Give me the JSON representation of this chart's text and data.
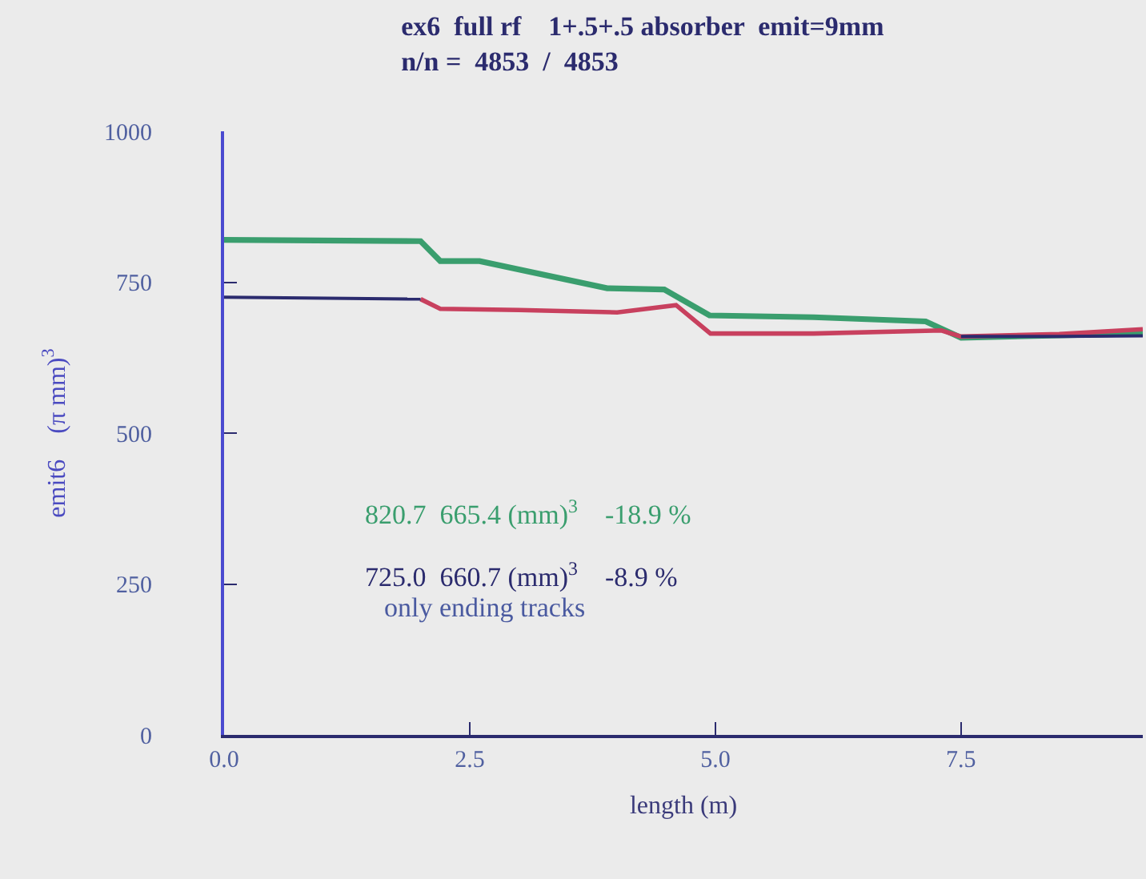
{
  "chart_data": {
    "type": "line",
    "title": "ex6  full rf    1+.5+.5 absorber  emit=9mm",
    "subtitle": "n/n =  4853  /  4853",
    "xlabel": "length (m)",
    "ylabel": "emit6    (π mm)$^{3}$",
    "series": [
      {
        "color": "#3a9e6e",
        "x": [
          0,
          2.0,
          2.2,
          2.6,
          3.9,
          4.48,
          4.94,
          6.0,
          7.14,
          7.5,
          8.5,
          9.35
        ],
        "values": [
          820,
          818,
          785,
          785,
          740,
          738,
          695,
          692,
          685,
          658,
          662,
          665
        ]
      },
      {
        "color": "#c8405e",
        "x": [
          2.0,
          2.2,
          3.0,
          4.0,
          4.6,
          4.95,
          6.0,
          7.3,
          7.5,
          8.5,
          9.35
        ],
        "values": [
          722,
          706,
          704,
          700,
          712,
          665,
          665,
          670,
          660,
          664,
          672
        ]
      },
      {
        "color": "#2b2b6e",
        "x": [
          0,
          2.0,
          5.0,
          7.5,
          8.5,
          9.35
        ],
        "values": [
          725,
          722,
          null,
          660,
          660,
          661
        ]
      }
    ],
    "xlim": [
      0,
      9.35
    ],
    "ylim": [
      0,
      1000
    ],
    "xticks": [
      {
        "value": 0,
        "label": "0.0"
      },
      {
        "value": 2.5,
        "label": "2.5"
      },
      {
        "value": 5,
        "label": "5.0"
      },
      {
        "value": 7.5,
        "label": "7.5"
      }
    ],
    "yticks": [
      0,
      250,
      500,
      750,
      1000
    ],
    "annotations": [
      "820.7  665.4 (mm)$^{3}$    -18.9 %",
      "725.0  660.7 (mm)$^{3}$    -8.9 %",
      "only ending tracks"
    ],
    "tick_labels": "xy"
  }
}
